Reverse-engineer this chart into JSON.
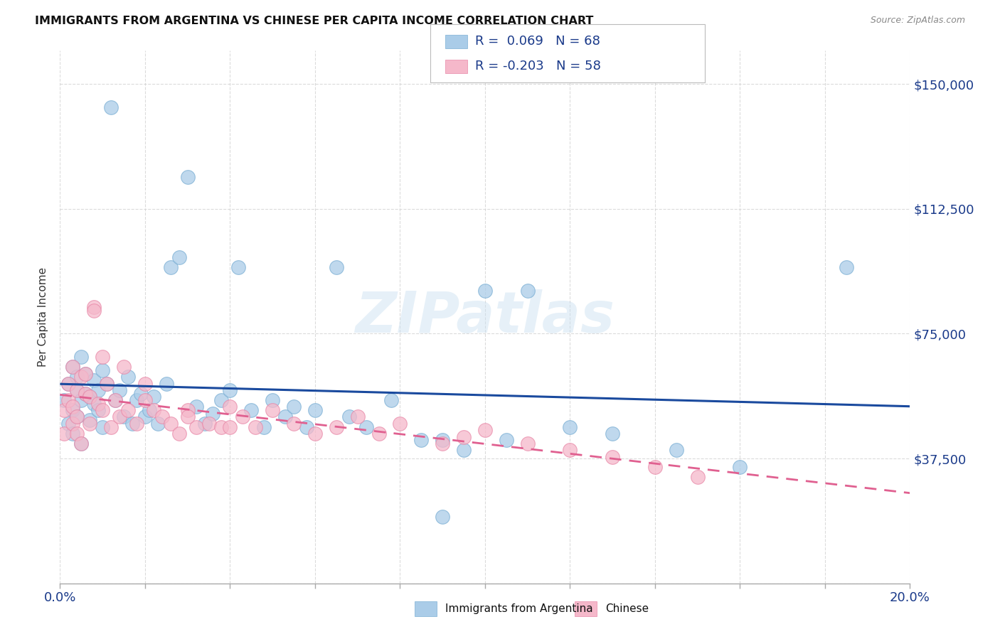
{
  "title": "IMMIGRANTS FROM ARGENTINA VS CHINESE PER CAPITA INCOME CORRELATION CHART",
  "source": "Source: ZipAtlas.com",
  "ylabel": "Per Capita Income",
  "xlim": [
    0.0,
    0.2
  ],
  "ylim": [
    0,
    160000
  ],
  "xticks": [
    0.0,
    0.02,
    0.04,
    0.06,
    0.08,
    0.1,
    0.12,
    0.14,
    0.16,
    0.18,
    0.2
  ],
  "yticks": [
    0,
    37500,
    75000,
    112500,
    150000
  ],
  "yticklabels": [
    "",
    "$37,500",
    "$75,000",
    "$112,500",
    "$150,000"
  ],
  "argentina_color": "#aacce8",
  "argentina_edge": "#7bafd4",
  "chinese_color": "#f5b8ca",
  "chinese_edge": "#e888a8",
  "argentina_line_color": "#1a4a9e",
  "chinese_line_color": "#e06090",
  "background_color": "#ffffff",
  "grid_color": "#cccccc",
  "watermark_text": "ZIPatlas",
  "R_argentina": 0.069,
  "N_argentina": 68,
  "R_chinese": -0.203,
  "N_chinese": 58,
  "legend_label1": "Immigrants from Argentina",
  "legend_label2": "Chinese",
  "title_color": "#111111",
  "source_color": "#888888",
  "axis_label_color": "#333333",
  "tick_color": "#1a3a8a",
  "argentina_x": [
    0.001,
    0.002,
    0.002,
    0.003,
    0.003,
    0.003,
    0.004,
    0.004,
    0.004,
    0.005,
    0.005,
    0.005,
    0.006,
    0.006,
    0.007,
    0.007,
    0.008,
    0.008,
    0.009,
    0.009,
    0.01,
    0.01,
    0.011,
    0.012,
    0.013,
    0.014,
    0.015,
    0.016,
    0.017,
    0.018,
    0.019,
    0.02,
    0.021,
    0.022,
    0.023,
    0.025,
    0.026,
    0.028,
    0.03,
    0.032,
    0.034,
    0.036,
    0.038,
    0.04,
    0.042,
    0.045,
    0.048,
    0.05,
    0.053,
    0.055,
    0.058,
    0.06,
    0.065,
    0.068,
    0.072,
    0.078,
    0.085,
    0.09,
    0.095,
    0.1,
    0.105,
    0.11,
    0.12,
    0.13,
    0.145,
    0.16,
    0.185,
    0.09
  ],
  "argentina_y": [
    55000,
    60000,
    48000,
    52000,
    65000,
    45000,
    58000,
    62000,
    50000,
    55000,
    68000,
    42000,
    57000,
    63000,
    56000,
    49000,
    54000,
    61000,
    58000,
    52000,
    64000,
    47000,
    60000,
    143000,
    55000,
    58000,
    50000,
    62000,
    48000,
    55000,
    57000,
    50000,
    52000,
    56000,
    48000,
    60000,
    95000,
    98000,
    122000,
    53000,
    48000,
    51000,
    55000,
    58000,
    95000,
    52000,
    47000,
    55000,
    50000,
    53000,
    47000,
    52000,
    95000,
    50000,
    47000,
    55000,
    43000,
    43000,
    40000,
    88000,
    43000,
    88000,
    47000,
    45000,
    40000,
    35000,
    95000,
    20000
  ],
  "chinese_x": [
    0.001,
    0.001,
    0.002,
    0.002,
    0.003,
    0.003,
    0.003,
    0.004,
    0.004,
    0.004,
    0.005,
    0.005,
    0.006,
    0.006,
    0.007,
    0.007,
    0.008,
    0.008,
    0.009,
    0.01,
    0.011,
    0.012,
    0.013,
    0.014,
    0.015,
    0.016,
    0.018,
    0.02,
    0.022,
    0.024,
    0.026,
    0.028,
    0.03,
    0.032,
    0.035,
    0.038,
    0.04,
    0.043,
    0.046,
    0.05,
    0.055,
    0.06,
    0.065,
    0.07,
    0.075,
    0.08,
    0.09,
    0.095,
    0.1,
    0.11,
    0.12,
    0.13,
    0.14,
    0.15,
    0.01,
    0.02,
    0.03,
    0.04
  ],
  "chinese_y": [
    52000,
    45000,
    60000,
    55000,
    48000,
    53000,
    65000,
    50000,
    58000,
    45000,
    62000,
    42000,
    57000,
    63000,
    56000,
    48000,
    83000,
    82000,
    54000,
    52000,
    60000,
    47000,
    55000,
    50000,
    65000,
    52000,
    48000,
    55000,
    52000,
    50000,
    48000,
    45000,
    52000,
    47000,
    48000,
    47000,
    53000,
    50000,
    47000,
    52000,
    48000,
    45000,
    47000,
    50000,
    45000,
    48000,
    42000,
    44000,
    46000,
    42000,
    40000,
    38000,
    35000,
    32000,
    68000,
    60000,
    50000,
    47000
  ]
}
